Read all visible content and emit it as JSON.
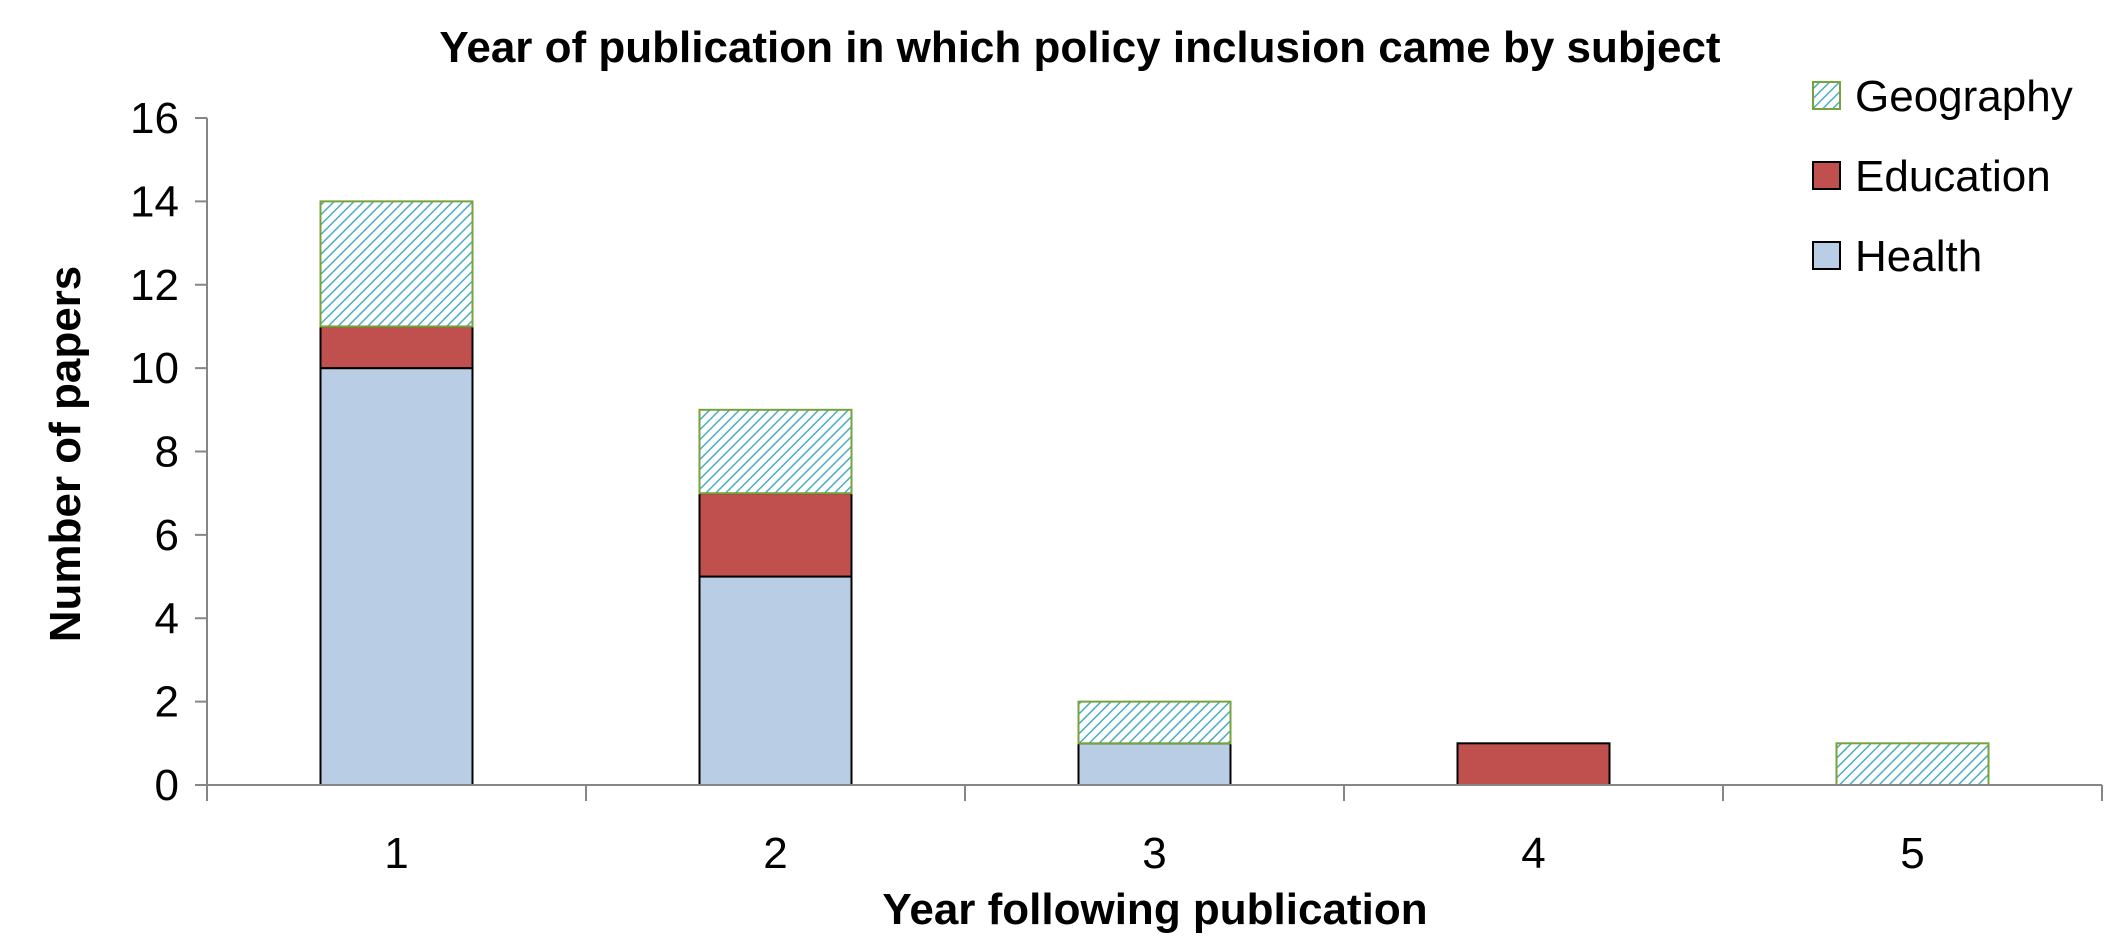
{
  "chart_data": {
    "type": "bar",
    "stacked": true,
    "title": "Year of publication in which policy inclusion came by subject",
    "xlabel": "Year following publication",
    "ylabel": "Number of papers",
    "categories": [
      "1",
      "2",
      "3",
      "4",
      "5"
    ],
    "ylim": [
      0,
      16
    ],
    "yticks": [
      0,
      2,
      4,
      6,
      8,
      10,
      12,
      14,
      16
    ],
    "grid": false,
    "legend_position": "top-right",
    "series": [
      {
        "name": "Health",
        "values": [
          10,
          5,
          1,
          0,
          0
        ],
        "color": "#b9cde5",
        "pattern": "solid"
      },
      {
        "name": "Education",
        "values": [
          1,
          2,
          0,
          1,
          0
        ],
        "color": "#c0504d",
        "pattern": "solid"
      },
      {
        "name": "Geography",
        "values": [
          3,
          2,
          1,
          0,
          1
        ],
        "color": "#4bacc6",
        "border": "#77a33b",
        "pattern": "diagonal-hatch"
      }
    ],
    "legend_order": [
      "Geography",
      "Education",
      "Health"
    ]
  }
}
